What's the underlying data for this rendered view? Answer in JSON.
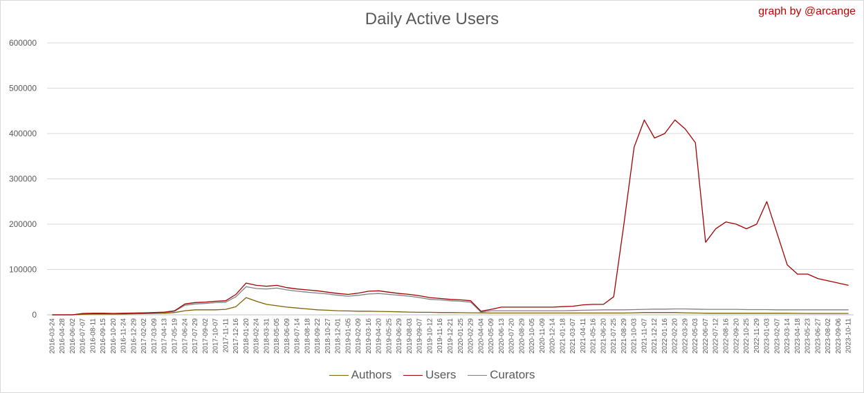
{
  "chart_data": {
    "type": "line",
    "title": "Daily Active Users",
    "credit": "graph by @arcange",
    "xlabel": "",
    "ylabel": "",
    "ylim": [
      0,
      600000
    ],
    "y_ticks": [
      "0",
      "100000",
      "200000",
      "300000",
      "400000",
      "500000",
      "600000"
    ],
    "y_tick_values": [
      0,
      100000,
      200000,
      300000,
      400000,
      500000,
      600000
    ],
    "grid": true,
    "legend_position": "bottom",
    "x_tick_labels": [
      "2016-03-24",
      "2016-04-28",
      "2016-06-02",
      "2016-07-07",
      "2016-08-11",
      "2016-09-15",
      "2016-10-20",
      "2016-11-24",
      "2016-12-29",
      "2017-02-02",
      "2017-03-09",
      "2017-04-13",
      "2017-05-19",
      "2017-06-24",
      "2017-07-29",
      "2017-09-02",
      "2017-10-07",
      "2017-11-11",
      "2017-12-16",
      "2018-01-20",
      "2018-02-24",
      "2018-03-31",
      "2018-05-05",
      "2018-06-09",
      "2018-07-14",
      "2018-08-18",
      "2018-09-22",
      "2018-10-27",
      "2018-12-01",
      "2019-01-05",
      "2019-02-09",
      "2019-03-16",
      "2019-04-20",
      "2019-05-25",
      "2019-06-29",
      "2019-08-03",
      "2019-09-07",
      "2019-10-12",
      "2019-11-16",
      "2019-12-21",
      "2020-01-25",
      "2020-02-29",
      "2020-04-04",
      "2020-05-09",
      "2020-06-13",
      "2020-07-20",
      "2020-08-29",
      "2020-10-05",
      "2020-11-09",
      "2020-12-14",
      "2021-01-18",
      "2021-03-07",
      "2021-04-11",
      "2021-05-16",
      "2021-06-20",
      "2021-07-25",
      "2021-08-29",
      "2021-10-03",
      "2021-11-07",
      "2021-12-12",
      "2022-01-16",
      "2022-02-20",
      "2022-03-29",
      "2022-05-03",
      "2022-06-07",
      "2022-07-12",
      "2022-08-16",
      "2022-09-20",
      "2022-10-25",
      "2022-11-29",
      "2023-01-03",
      "2023-02-07",
      "2023-03-14",
      "2023-04-18",
      "2023-05-23",
      "2023-06-27",
      "2023-08-02",
      "2023-09-06",
      "2023-10-11"
    ],
    "x": [
      "2016-03-24",
      "2016-04-28",
      "2016-06-02",
      "2016-07-07",
      "2016-08-11",
      "2016-09-15",
      "2016-10-20",
      "2016-11-24",
      "2016-12-29",
      "2017-02-02",
      "2017-03-09",
      "2017-04-13",
      "2017-05-19",
      "2017-06-24",
      "2017-07-29",
      "2017-09-02",
      "2017-10-07",
      "2017-11-11",
      "2017-12-16",
      "2018-01-20",
      "2018-02-24",
      "2018-03-31",
      "2018-05-05",
      "2018-06-09",
      "2018-07-14",
      "2018-08-18",
      "2018-09-22",
      "2018-10-27",
      "2018-12-01",
      "2019-01-05",
      "2019-02-09",
      "2019-03-16",
      "2019-04-20",
      "2019-05-25",
      "2019-06-29",
      "2019-08-03",
      "2019-09-07",
      "2019-10-12",
      "2019-11-16",
      "2019-12-21",
      "2020-01-25",
      "2020-02-29",
      "2020-04-04",
      "2020-05-09",
      "2020-06-13",
      "2020-07-20",
      "2020-08-29",
      "2020-10-05",
      "2020-11-09",
      "2020-12-14",
      "2021-01-18",
      "2021-03-07",
      "2021-04-11",
      "2021-05-16",
      "2021-06-20",
      "2021-07-25",
      "2021-08-29",
      "2021-10-03",
      "2021-11-07",
      "2021-12-12",
      "2022-01-16",
      "2022-02-20",
      "2022-03-29",
      "2022-05-03",
      "2022-06-07",
      "2022-07-12",
      "2022-08-16",
      "2022-09-20",
      "2022-10-25",
      "2022-11-29",
      "2023-01-03",
      "2023-02-07",
      "2023-03-14",
      "2023-04-18",
      "2023-05-23",
      "2023-06-27",
      "2023-08-02",
      "2023-09-06",
      "2023-10-11"
    ],
    "series": [
      {
        "name": "Authors",
        "color": "#7f6000",
        "values": [
          0,
          0,
          0,
          1000,
          1500,
          1500,
          1500,
          1800,
          2200,
          2500,
          3000,
          3500,
          5000,
          9000,
          11000,
          11000,
          11000,
          12000,
          18000,
          38000,
          30000,
          23000,
          20000,
          17000,
          15000,
          13000,
          11000,
          10000,
          9000,
          8500,
          8000,
          8000,
          7500,
          7000,
          6500,
          6000,
          5500,
          5500,
          5000,
          5000,
          4800,
          4500,
          4500,
          4000,
          4000,
          4000,
          4000,
          4000,
          4000,
          4000,
          4000,
          4000,
          4000,
          4000,
          4000,
          4000,
          4000,
          4500,
          5000,
          5000,
          5000,
          5000,
          4500,
          4000,
          3500,
          3500,
          3500,
          3500,
          3500,
          3500,
          3500,
          3500,
          3500,
          3200,
          3000,
          3000,
          3000,
          3000,
          3000
        ]
      },
      {
        "name": "Users",
        "color": "#a00000",
        "values": [
          0,
          0,
          0,
          3000,
          3500,
          3500,
          3000,
          3500,
          4000,
          4500,
          5000,
          6000,
          9000,
          24000,
          27000,
          28000,
          30000,
          31000,
          45000,
          70000,
          65000,
          63000,
          65000,
          60000,
          57000,
          55000,
          53000,
          50000,
          47000,
          45000,
          48000,
          52000,
          53000,
          50000,
          47000,
          45000,
          42000,
          38000,
          36000,
          34000,
          33000,
          31000,
          8000,
          12000,
          17000,
          17000,
          17000,
          17000,
          17000,
          17000,
          18000,
          19000,
          22000,
          23000,
          23000,
          40000,
          200000,
          370000,
          430000,
          390000,
          400000,
          430000,
          410000,
          380000,
          160000,
          190000,
          205000,
          200000,
          190000,
          200000,
          250000,
          180000,
          110000,
          90000,
          90000,
          80000,
          75000,
          70000,
          65000
        ]
      },
      {
        "name": "Curators",
        "color": "#7f7f7f",
        "values": [
          0,
          0,
          0,
          2500,
          3000,
          3000,
          2500,
          3000,
          3500,
          4000,
          4500,
          5500,
          8000,
          21000,
          24000,
          25000,
          27000,
          28000,
          40000,
          62000,
          58000,
          57000,
          59000,
          55000,
          52000,
          50000,
          48000,
          46000,
          43000,
          41000,
          43000,
          46000,
          47000,
          45000,
          43000,
          41000,
          38000,
          34000,
          33000,
          31000,
          30000,
          28000,
          6000,
          9000,
          9000,
          9000,
          9000,
          9000,
          9000,
          9000,
          9000,
          9500,
          10000,
          10500,
          11000,
          11000,
          11000,
          11500,
          12000,
          12500,
          12500,
          13000,
          13000,
          12500,
          12000,
          12000,
          12000,
          12000,
          11500,
          11500,
          11500,
          11000,
          11000,
          11000,
          11000,
          11000,
          11000,
          11000,
          11000
        ]
      }
    ]
  }
}
